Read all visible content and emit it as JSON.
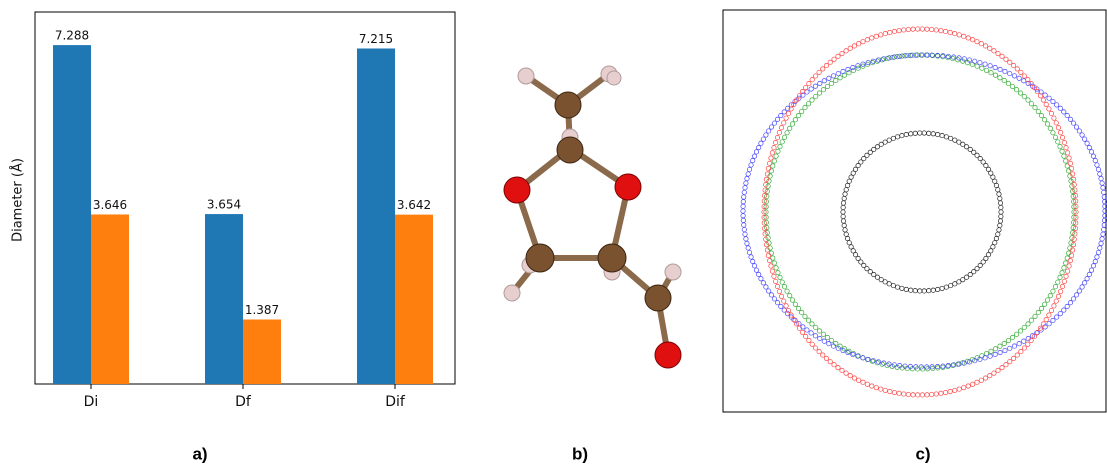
{
  "chart_data": {
    "type": "bar",
    "y_label": "Diameter (Å)",
    "categories": [
      "Di",
      "Df",
      "Dif"
    ],
    "series": [
      {
        "color": "#1f77b4",
        "values": [
          7.288,
          3.654,
          7.215
        ]
      },
      {
        "color": "#ff7f0e",
        "values": [
          3.646,
          1.387,
          3.642
        ]
      }
    ],
    "ylim": [
      0,
      8
    ]
  },
  "panel_labels": [
    "a)",
    "b)",
    "c)"
  ]
}
